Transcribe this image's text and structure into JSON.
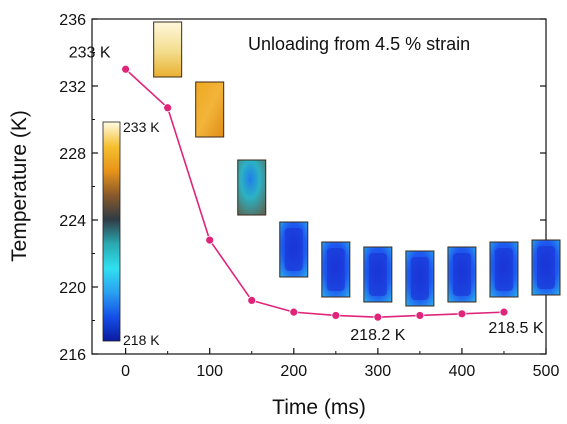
{
  "chart_data": {
    "type": "line",
    "title": "",
    "annotation_title": "Unloading from 4.5 % strain",
    "xlabel": "Time (ms)",
    "ylabel": "Temperature (K)",
    "xlim": [
      -40,
      500
    ],
    "ylim": [
      216,
      236
    ],
    "xticks": [
      0,
      100,
      200,
      300,
      400,
      500
    ],
    "yticks": [
      216,
      220,
      224,
      228,
      232,
      236
    ],
    "grid": false,
    "series": [
      {
        "color": "#e0247a",
        "x": [
          0,
          50,
          100,
          150,
          200,
          250,
          300,
          350,
          400,
          450
        ],
        "y": [
          233.0,
          230.7,
          222.8,
          219.2,
          218.5,
          218.3,
          218.2,
          218.3,
          218.4,
          218.5
        ]
      }
    ],
    "point_labels": [
      {
        "text": "233 K",
        "x": 0,
        "y": 233.0
      },
      {
        "text": "218.2 K",
        "x": 300,
        "y": 218.2
      },
      {
        "text": "218.5 K",
        "x": 450,
        "y": 218.5
      }
    ],
    "colorbar": {
      "max_label": "233 K",
      "min_label": "218 K",
      "stops": [
        "#fffbe6",
        "#f5c030",
        "#e8941a",
        "#8a5a2a",
        "#303a44",
        "#2aa8b0",
        "#30e0f0",
        "#2aa0f0",
        "#1550e8",
        "#0a1aa0"
      ]
    },
    "thermal_frames": [
      {
        "time": 50,
        "palette": "cream"
      },
      {
        "time": 100,
        "palette": "orange"
      },
      {
        "time": 150,
        "palette": "teal"
      },
      {
        "time": 200,
        "palette": "blue"
      },
      {
        "time": 250,
        "palette": "blue"
      },
      {
        "time": 300,
        "palette": "blue"
      },
      {
        "time": 350,
        "palette": "blue"
      },
      {
        "time": 400,
        "palette": "blue"
      },
      {
        "time": 450,
        "palette": "blue"
      },
      {
        "time": 500,
        "palette": "blue"
      }
    ]
  }
}
